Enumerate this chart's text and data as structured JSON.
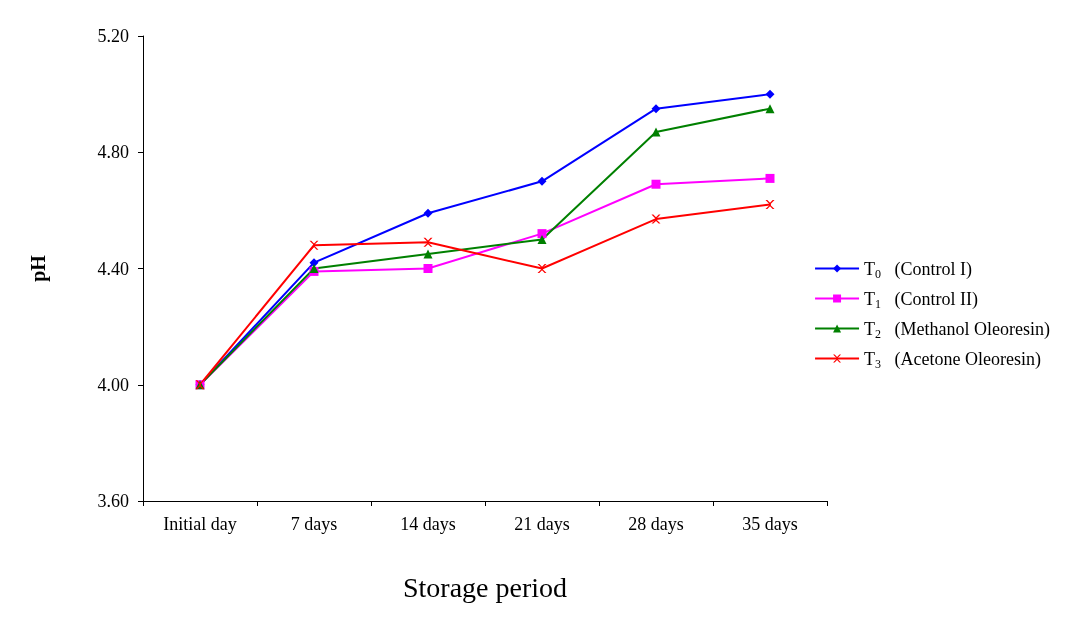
{
  "chart_data": {
    "type": "line",
    "xlabel": "Storage period",
    "ylabel": "pH",
    "categories": [
      "Initial day",
      "7 days",
      "14 days",
      "21 days",
      "28 days",
      "35 days"
    ],
    "series": [
      {
        "name": "T$_{0}$   (Control I)",
        "color": "#0000ff",
        "marker": "diamond",
        "values": [
          4.0,
          4.42,
          4.59,
          4.7,
          4.95,
          5.0
        ]
      },
      {
        "name": "T$_{1}$   (Control II)",
        "color": "#ff00ff",
        "marker": "square",
        "values": [
          4.0,
          4.39,
          4.4,
          4.52,
          4.69,
          4.71
        ]
      },
      {
        "name": "T$_{2}$   (Methanol Oleoresin)",
        "color": "#008000",
        "marker": "triangle",
        "values": [
          4.0,
          4.4,
          4.45,
          4.5,
          4.87,
          4.95
        ]
      },
      {
        "name": "T$_{3}$   (Acetone Oleoresin)",
        "color": "#ff0000",
        "marker": "cross",
        "values": [
          4.0,
          4.48,
          4.49,
          4.4,
          4.57,
          4.62
        ]
      }
    ],
    "ylim": [
      3.6,
      5.2
    ],
    "yticks": [
      {
        "value": 3.6,
        "label": "3.60"
      },
      {
        "value": 4.0,
        "label": "4.00"
      },
      {
        "value": 4.4,
        "label": "4.40"
      },
      {
        "value": 4.8,
        "label": "4.80"
      },
      {
        "value": 5.2,
        "label": "5.20"
      }
    ],
    "grid": false,
    "legend": "right"
  }
}
